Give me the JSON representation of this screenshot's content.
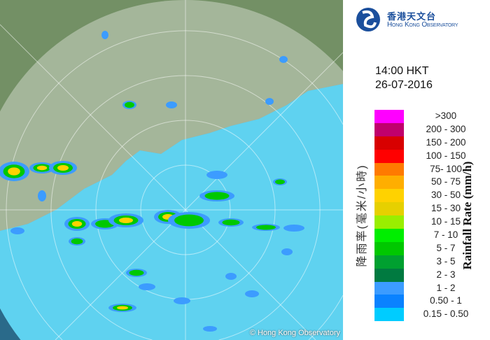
{
  "logo": {
    "name_zh": "香港天文台",
    "name_en": "Hong Kong Observatory"
  },
  "timestamp": {
    "time": "14:00 HKT",
    "date": "26-07-2016"
  },
  "legend": {
    "title_en": "Rainfall Rate (mm/h)",
    "title_zh": "降雨率(毫米/小時)",
    "items": [
      {
        "label": ">300",
        "color": "#ff00ff"
      },
      {
        "label": "200 - 300",
        "color": "#c0006c"
      },
      {
        "label": "150 - 200",
        "color": "#d80000"
      },
      {
        "label": "100 - 150",
        "color": "#ff0000"
      },
      {
        "label": "75- 100",
        "color": "#ff7a00"
      },
      {
        "label": "50 - 75",
        "color": "#ffae00"
      },
      {
        "label": "30 - 50",
        "color": "#ffd200"
      },
      {
        "label": "15 - 30",
        "color": "#e6d000"
      },
      {
        "label": "10 - 15",
        "color": "#99ee00"
      },
      {
        "label": "7 - 10",
        "color": "#00ee00"
      },
      {
        "label": "5 - 7",
        "color": "#00c800"
      },
      {
        "label": "3 - 5",
        "color": "#00a030"
      },
      {
        "label": "2 - 3",
        "color": "#007a40"
      },
      {
        "label": "1 - 2",
        "color": "#3c9cff"
      },
      {
        "label": "0.50 - 1",
        "color": "#0a82ff"
      },
      {
        "label": "0.15 - 0.50",
        "color": "#00ccff"
      }
    ]
  },
  "map": {
    "copyright": "© Hong Kong Observatory",
    "land_color": "#6f8a60",
    "sea_color": "#5fd2f0"
  }
}
